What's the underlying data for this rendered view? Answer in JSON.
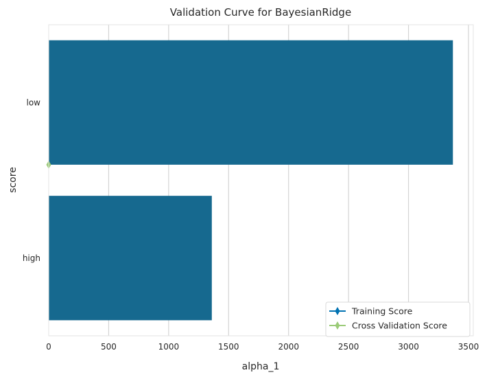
{
  "chart_data": {
    "type": "bar",
    "orientation": "horizontal",
    "title": "Validation Curve for BayesianRidge",
    "xlabel": "alpha_1",
    "ylabel": "score",
    "categories": [
      "low",
      "high"
    ],
    "values": [
      3370,
      1360
    ],
    "xlim": [
      0,
      3540
    ],
    "xticks": [
      0,
      500,
      1000,
      1500,
      2000,
      2500,
      3000,
      3500
    ],
    "grid": true,
    "bar_color": "#16698f",
    "legend": {
      "placement": "lower-right",
      "entries": [
        {
          "label": "Training Score",
          "color": "#0072b2",
          "marker": "diamond"
        },
        {
          "label": "Cross Validation Score",
          "color": "#9bcb78",
          "marker": "diamond"
        }
      ]
    },
    "cv_marker": {
      "x": 0,
      "category": "low",
      "offset": 0.4,
      "color": "#9bcb78"
    }
  }
}
